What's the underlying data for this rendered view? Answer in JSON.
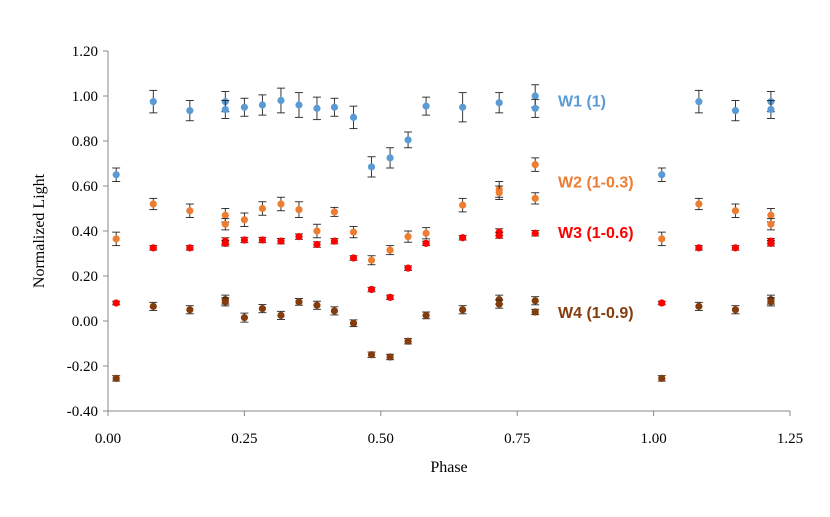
{
  "chart_data": {
    "type": "scatter",
    "title": "",
    "xlabel": "Phase",
    "ylabel": "Normalized Light",
    "xlim": [
      0,
      1.25
    ],
    "ylim": [
      -0.4,
      1.2
    ],
    "x_ticks": [
      "0.00",
      "0.25",
      "0.50",
      "0.75",
      "1.00",
      "1.25"
    ],
    "y_ticks": [
      "1.20",
      "1.00",
      "0.80",
      "0.60",
      "0.40",
      "0.20",
      "0.00",
      "-0.20",
      "-0.40"
    ],
    "x_tick_values": [
      0,
      0.25,
      0.5,
      0.75,
      1.0,
      1.25
    ],
    "y_tick_values": [
      1.2,
      1.0,
      0.8,
      0.6,
      0.4,
      0.2,
      0.0,
      -0.2,
      -0.4
    ],
    "grid": false,
    "legend_placement": "inline-right",
    "series": [
      {
        "name": "W1 (1)",
        "color": "#5B9BD5",
        "points": [
          {
            "x": 0.015,
            "y": 0.65,
            "err": 0.03
          },
          {
            "x": 0.083,
            "y": 0.975,
            "err": 0.05
          },
          {
            "x": 0.15,
            "y": 0.935,
            "err": 0.045
          },
          {
            "x": 0.215,
            "y": 0.975,
            "err": 0.045
          },
          {
            "x": 0.215,
            "y": 0.94,
            "err": 0.04
          },
          {
            "x": 0.25,
            "y": 0.95,
            "err": 0.04
          },
          {
            "x": 0.283,
            "y": 0.96,
            "err": 0.045
          },
          {
            "x": 0.317,
            "y": 0.98,
            "err": 0.055
          },
          {
            "x": 0.35,
            "y": 0.96,
            "err": 0.055
          },
          {
            "x": 0.383,
            "y": 0.945,
            "err": 0.05
          },
          {
            "x": 0.415,
            "y": 0.95,
            "err": 0.04
          },
          {
            "x": 0.45,
            "y": 0.905,
            "err": 0.05
          },
          {
            "x": 0.483,
            "y": 0.685,
            "err": 0.045
          },
          {
            "x": 0.517,
            "y": 0.725,
            "err": 0.045
          },
          {
            "x": 0.55,
            "y": 0.805,
            "err": 0.035
          },
          {
            "x": 0.583,
            "y": 0.955,
            "err": 0.04
          },
          {
            "x": 0.65,
            "y": 0.95,
            "err": 0.065
          },
          {
            "x": 0.717,
            "y": 0.97,
            "err": 0.045
          },
          {
            "x": 0.783,
            "y": 1.0,
            "err": 0.05
          },
          {
            "x": 0.783,
            "y": 0.945,
            "err": 0.04
          },
          {
            "x": 1.015,
            "y": 0.65,
            "err": 0.03
          },
          {
            "x": 1.083,
            "y": 0.975,
            "err": 0.05
          },
          {
            "x": 1.15,
            "y": 0.935,
            "err": 0.045
          },
          {
            "x": 1.215,
            "y": 0.975,
            "err": 0.045
          },
          {
            "x": 1.215,
            "y": 0.94,
            "err": 0.04
          }
        ]
      },
      {
        "name": "W2 (1-0.3)",
        "color": "#ED7D31",
        "points": [
          {
            "x": 0.015,
            "y": 0.365,
            "err": 0.03
          },
          {
            "x": 0.083,
            "y": 0.52,
            "err": 0.025
          },
          {
            "x": 0.15,
            "y": 0.49,
            "err": 0.03
          },
          {
            "x": 0.215,
            "y": 0.47,
            "err": 0.03
          },
          {
            "x": 0.215,
            "y": 0.43,
            "err": 0.025
          },
          {
            "x": 0.25,
            "y": 0.45,
            "err": 0.03
          },
          {
            "x": 0.283,
            "y": 0.5,
            "err": 0.03
          },
          {
            "x": 0.317,
            "y": 0.52,
            "err": 0.03
          },
          {
            "x": 0.35,
            "y": 0.495,
            "err": 0.035
          },
          {
            "x": 0.383,
            "y": 0.4,
            "err": 0.03
          },
          {
            "x": 0.415,
            "y": 0.485,
            "err": 0.02
          },
          {
            "x": 0.45,
            "y": 0.395,
            "err": 0.025
          },
          {
            "x": 0.483,
            "y": 0.27,
            "err": 0.02
          },
          {
            "x": 0.517,
            "y": 0.315,
            "err": 0.02
          },
          {
            "x": 0.55,
            "y": 0.375,
            "err": 0.025
          },
          {
            "x": 0.583,
            "y": 0.39,
            "err": 0.025
          },
          {
            "x": 0.65,
            "y": 0.515,
            "err": 0.03
          },
          {
            "x": 0.717,
            "y": 0.585,
            "err": 0.035
          },
          {
            "x": 0.717,
            "y": 0.57,
            "err": 0.03
          },
          {
            "x": 0.783,
            "y": 0.695,
            "err": 0.03
          },
          {
            "x": 0.783,
            "y": 0.545,
            "err": 0.025
          },
          {
            "x": 1.015,
            "y": 0.365,
            "err": 0.03
          },
          {
            "x": 1.083,
            "y": 0.52,
            "err": 0.025
          },
          {
            "x": 1.15,
            "y": 0.49,
            "err": 0.03
          },
          {
            "x": 1.215,
            "y": 0.47,
            "err": 0.03
          },
          {
            "x": 1.215,
            "y": 0.43,
            "err": 0.025
          }
        ]
      },
      {
        "name": "W3 (1-0.6)",
        "color": "#FF0000",
        "points": [
          {
            "x": 0.015,
            "y": 0.08,
            "err": 0.008
          },
          {
            "x": 0.083,
            "y": 0.325,
            "err": 0.01
          },
          {
            "x": 0.15,
            "y": 0.325,
            "err": 0.01
          },
          {
            "x": 0.215,
            "y": 0.355,
            "err": 0.015
          },
          {
            "x": 0.215,
            "y": 0.345,
            "err": 0.012
          },
          {
            "x": 0.25,
            "y": 0.36,
            "err": 0.012
          },
          {
            "x": 0.283,
            "y": 0.36,
            "err": 0.012
          },
          {
            "x": 0.317,
            "y": 0.355,
            "err": 0.012
          },
          {
            "x": 0.35,
            "y": 0.375,
            "err": 0.012
          },
          {
            "x": 0.383,
            "y": 0.34,
            "err": 0.012
          },
          {
            "x": 0.415,
            "y": 0.355,
            "err": 0.012
          },
          {
            "x": 0.45,
            "y": 0.28,
            "err": 0.01
          },
          {
            "x": 0.483,
            "y": 0.14,
            "err": 0.01
          },
          {
            "x": 0.517,
            "y": 0.105,
            "err": 0.01
          },
          {
            "x": 0.55,
            "y": 0.235,
            "err": 0.01
          },
          {
            "x": 0.583,
            "y": 0.345,
            "err": 0.01
          },
          {
            "x": 0.65,
            "y": 0.37,
            "err": 0.01
          },
          {
            "x": 0.717,
            "y": 0.395,
            "err": 0.015
          },
          {
            "x": 0.717,
            "y": 0.38,
            "err": 0.012
          },
          {
            "x": 0.783,
            "y": 0.39,
            "err": 0.012
          },
          {
            "x": 1.015,
            "y": 0.08,
            "err": 0.008
          },
          {
            "x": 1.083,
            "y": 0.325,
            "err": 0.01
          },
          {
            "x": 1.15,
            "y": 0.325,
            "err": 0.01
          },
          {
            "x": 1.215,
            "y": 0.355,
            "err": 0.012
          },
          {
            "x": 1.215,
            "y": 0.345,
            "err": 0.012
          }
        ]
      },
      {
        "name": "W4 (1-0.9)",
        "color": "#843C0C",
        "points": [
          {
            "x": 0.015,
            "y": -0.255,
            "err": 0.012
          },
          {
            "x": 0.083,
            "y": 0.065,
            "err": 0.018
          },
          {
            "x": 0.15,
            "y": 0.05,
            "err": 0.018
          },
          {
            "x": 0.215,
            "y": 0.095,
            "err": 0.02
          },
          {
            "x": 0.215,
            "y": 0.085,
            "err": 0.018
          },
          {
            "x": 0.25,
            "y": 0.015,
            "err": 0.02
          },
          {
            "x": 0.283,
            "y": 0.055,
            "err": 0.018
          },
          {
            "x": 0.317,
            "y": 0.025,
            "err": 0.018
          },
          {
            "x": 0.35,
            "y": 0.085,
            "err": 0.015
          },
          {
            "x": 0.383,
            "y": 0.07,
            "err": 0.018
          },
          {
            "x": 0.415,
            "y": 0.045,
            "err": 0.018
          },
          {
            "x": 0.45,
            "y": -0.01,
            "err": 0.015
          },
          {
            "x": 0.483,
            "y": -0.15,
            "err": 0.012
          },
          {
            "x": 0.517,
            "y": -0.16,
            "err": 0.012
          },
          {
            "x": 0.55,
            "y": -0.09,
            "err": 0.012
          },
          {
            "x": 0.583,
            "y": 0.025,
            "err": 0.015
          },
          {
            "x": 0.65,
            "y": 0.05,
            "err": 0.018
          },
          {
            "x": 0.717,
            "y": 0.095,
            "err": 0.02
          },
          {
            "x": 0.717,
            "y": 0.075,
            "err": 0.018
          },
          {
            "x": 0.783,
            "y": 0.09,
            "err": 0.018
          },
          {
            "x": 0.783,
            "y": 0.04,
            "err": 0.012
          },
          {
            "x": 1.015,
            "y": -0.255,
            "err": 0.012
          },
          {
            "x": 1.083,
            "y": 0.065,
            "err": 0.018
          },
          {
            "x": 1.15,
            "y": 0.05,
            "err": 0.018
          },
          {
            "x": 1.215,
            "y": 0.095,
            "err": 0.02
          },
          {
            "x": 1.215,
            "y": 0.085,
            "err": 0.018
          }
        ]
      }
    ],
    "legend": [
      {
        "label": "W1 (1)",
        "y": 0.98,
        "color": "#5B9BD5"
      },
      {
        "label": "W2 (1-0.3)",
        "y": 0.62,
        "color": "#ED7D31"
      },
      {
        "label": "W3 (1-0.6)",
        "y": 0.395,
        "color": "#FF0000"
      },
      {
        "label": "W4 (1-0.9)",
        "y": 0.04,
        "color": "#843C0C"
      }
    ]
  }
}
